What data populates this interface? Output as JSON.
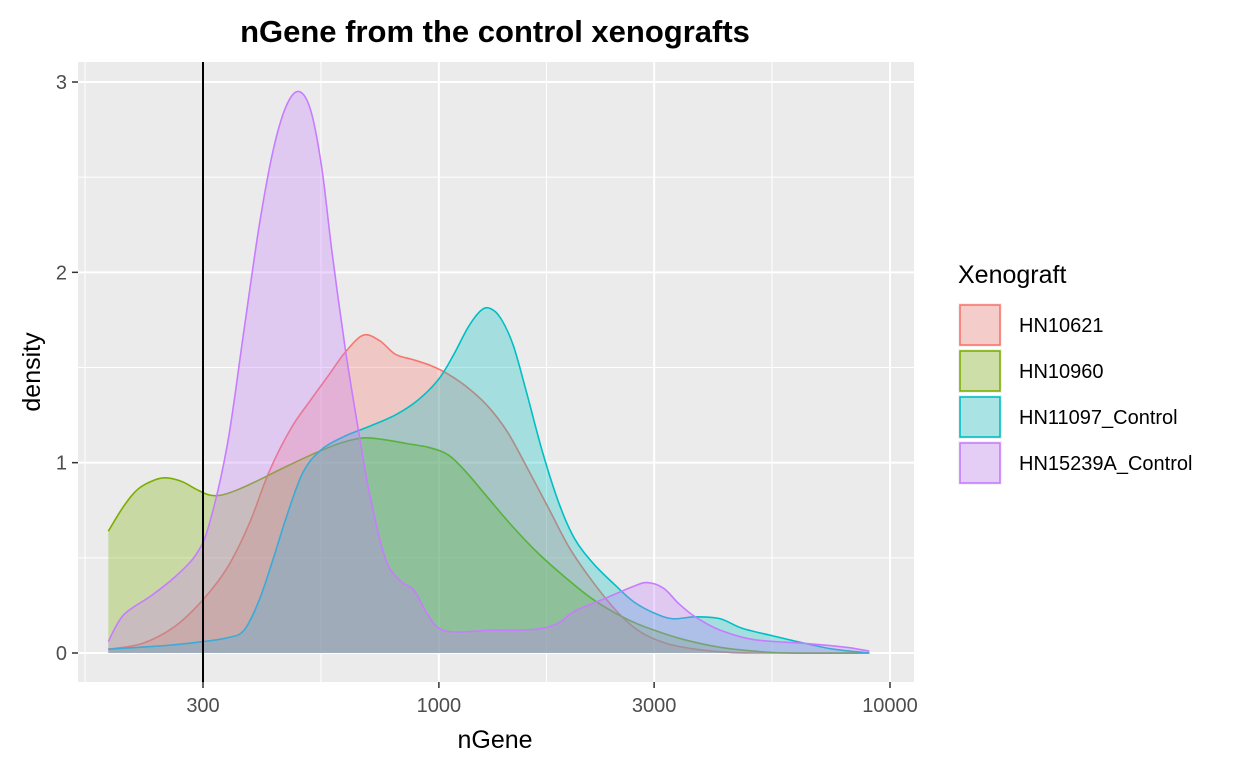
{
  "chart_data": {
    "type": "area",
    "subtype": "density",
    "title": "nGene from the control xenografts",
    "xlabel": "nGene",
    "ylabel": "density",
    "x_scale": "log10",
    "xlim": [
      150,
      10000
    ],
    "ylim": [
      0,
      3.05
    ],
    "x_ticks": [
      300,
      1000,
      3000,
      10000
    ],
    "x_tick_labels": [
      "300",
      "1000",
      "3000",
      "10000"
    ],
    "y_ticks": [
      0,
      1,
      2,
      3
    ],
    "y_tick_labels": [
      "0",
      "1",
      "2",
      "3"
    ],
    "grid": true,
    "vline": {
      "x": 300,
      "color": "#000000"
    },
    "legend": {
      "title": "Xenograft",
      "position": "right"
    },
    "fill_opacity": 0.3,
    "series": [
      {
        "name": "HN10621",
        "color": "#F8766D",
        "points": [
          [
            185,
            0.02
          ],
          [
            220,
            0.05
          ],
          [
            260,
            0.14
          ],
          [
            300,
            0.28
          ],
          [
            340,
            0.45
          ],
          [
            380,
            0.68
          ],
          [
            420,
            0.95
          ],
          [
            470,
            1.18
          ],
          [
            520,
            1.33
          ],
          [
            570,
            1.46
          ],
          [
            620,
            1.58
          ],
          [
            680,
            1.67
          ],
          [
            740,
            1.64
          ],
          [
            800,
            1.57
          ],
          [
            880,
            1.54
          ],
          [
            960,
            1.51
          ],
          [
            1040,
            1.47
          ],
          [
            1150,
            1.4
          ],
          [
            1280,
            1.3
          ],
          [
            1420,
            1.16
          ],
          [
            1580,
            0.96
          ],
          [
            1760,
            0.75
          ],
          [
            1950,
            0.55
          ],
          [
            2200,
            0.37
          ],
          [
            2500,
            0.21
          ],
          [
            2800,
            0.11
          ],
          [
            3200,
            0.05
          ],
          [
            3700,
            0.02
          ],
          [
            4300,
            0.005
          ],
          [
            5000,
            0
          ],
          [
            9000,
            0
          ]
        ]
      },
      {
        "name": "HN10960",
        "color": "#7CAE00",
        "points": [
          [
            185,
            0.64
          ],
          [
            200,
            0.77
          ],
          [
            215,
            0.86
          ],
          [
            235,
            0.91
          ],
          [
            250,
            0.92
          ],
          [
            270,
            0.9
          ],
          [
            290,
            0.86
          ],
          [
            310,
            0.83
          ],
          [
            330,
            0.83
          ],
          [
            360,
            0.86
          ],
          [
            400,
            0.91
          ],
          [
            450,
            0.97
          ],
          [
            520,
            1.04
          ],
          [
            600,
            1.1
          ],
          [
            680,
            1.13
          ],
          [
            760,
            1.12
          ],
          [
            850,
            1.1
          ],
          [
            950,
            1.08
          ],
          [
            1050,
            1.04
          ],
          [
            1150,
            0.95
          ],
          [
            1280,
            0.82
          ],
          [
            1450,
            0.67
          ],
          [
            1650,
            0.53
          ],
          [
            1900,
            0.4
          ],
          [
            2200,
            0.28
          ],
          [
            2600,
            0.18
          ],
          [
            3000,
            0.12
          ],
          [
            3500,
            0.07
          ],
          [
            4200,
            0.03
          ],
          [
            5000,
            0.01
          ],
          [
            6000,
            0
          ],
          [
            9000,
            0
          ]
        ]
      },
      {
        "name": "HN11097_Control",
        "color": "#00BFC4",
        "points": [
          [
            185,
            0.02
          ],
          [
            250,
            0.04
          ],
          [
            300,
            0.06
          ],
          [
            340,
            0.08
          ],
          [
            370,
            0.12
          ],
          [
            400,
            0.28
          ],
          [
            430,
            0.5
          ],
          [
            460,
            0.72
          ],
          [
            500,
            0.95
          ],
          [
            550,
            1.07
          ],
          [
            620,
            1.14
          ],
          [
            700,
            1.19
          ],
          [
            800,
            1.25
          ],
          [
            900,
            1.33
          ],
          [
            1000,
            1.44
          ],
          [
            1080,
            1.57
          ],
          [
            1160,
            1.71
          ],
          [
            1240,
            1.8
          ],
          [
            1300,
            1.81
          ],
          [
            1370,
            1.76
          ],
          [
            1460,
            1.62
          ],
          [
            1560,
            1.38
          ],
          [
            1700,
            1.05
          ],
          [
            1850,
            0.78
          ],
          [
            2000,
            0.6
          ],
          [
            2200,
            0.47
          ],
          [
            2450,
            0.36
          ],
          [
            2700,
            0.27
          ],
          [
            3000,
            0.21
          ],
          [
            3300,
            0.18
          ],
          [
            3700,
            0.19
          ],
          [
            4200,
            0.18
          ],
          [
            4700,
            0.13
          ],
          [
            5500,
            0.09
          ],
          [
            6500,
            0.05
          ],
          [
            7500,
            0.02
          ],
          [
            9000,
            0
          ]
        ]
      },
      {
        "name": "HN15239A_Control",
        "color": "#C77CFF",
        "points": [
          [
            185,
            0.06
          ],
          [
            200,
            0.2
          ],
          [
            230,
            0.3
          ],
          [
            260,
            0.4
          ],
          [
            290,
            0.52
          ],
          [
            310,
            0.68
          ],
          [
            340,
            1.1
          ],
          [
            370,
            1.7
          ],
          [
            400,
            2.25
          ],
          [
            430,
            2.65
          ],
          [
            460,
            2.88
          ],
          [
            490,
            2.95
          ],
          [
            520,
            2.85
          ],
          [
            550,
            2.55
          ],
          [
            580,
            2.1
          ],
          [
            620,
            1.6
          ],
          [
            660,
            1.2
          ],
          [
            700,
            0.85
          ],
          [
            760,
            0.5
          ],
          [
            820,
            0.38
          ],
          [
            880,
            0.33
          ],
          [
            940,
            0.21
          ],
          [
            1000,
            0.13
          ],
          [
            1100,
            0.11
          ],
          [
            1300,
            0.12
          ],
          [
            1500,
            0.12
          ],
          [
            1700,
            0.13
          ],
          [
            1850,
            0.16
          ],
          [
            2000,
            0.22
          ],
          [
            2300,
            0.28
          ],
          [
            2700,
            0.35
          ],
          [
            2900,
            0.37
          ],
          [
            3150,
            0.34
          ],
          [
            3400,
            0.26
          ],
          [
            3700,
            0.19
          ],
          [
            4200,
            0.12
          ],
          [
            5000,
            0.07
          ],
          [
            6500,
            0.05
          ],
          [
            8000,
            0.03
          ],
          [
            8500,
            0.02
          ],
          [
            9000,
            0.01
          ]
        ]
      }
    ]
  }
}
